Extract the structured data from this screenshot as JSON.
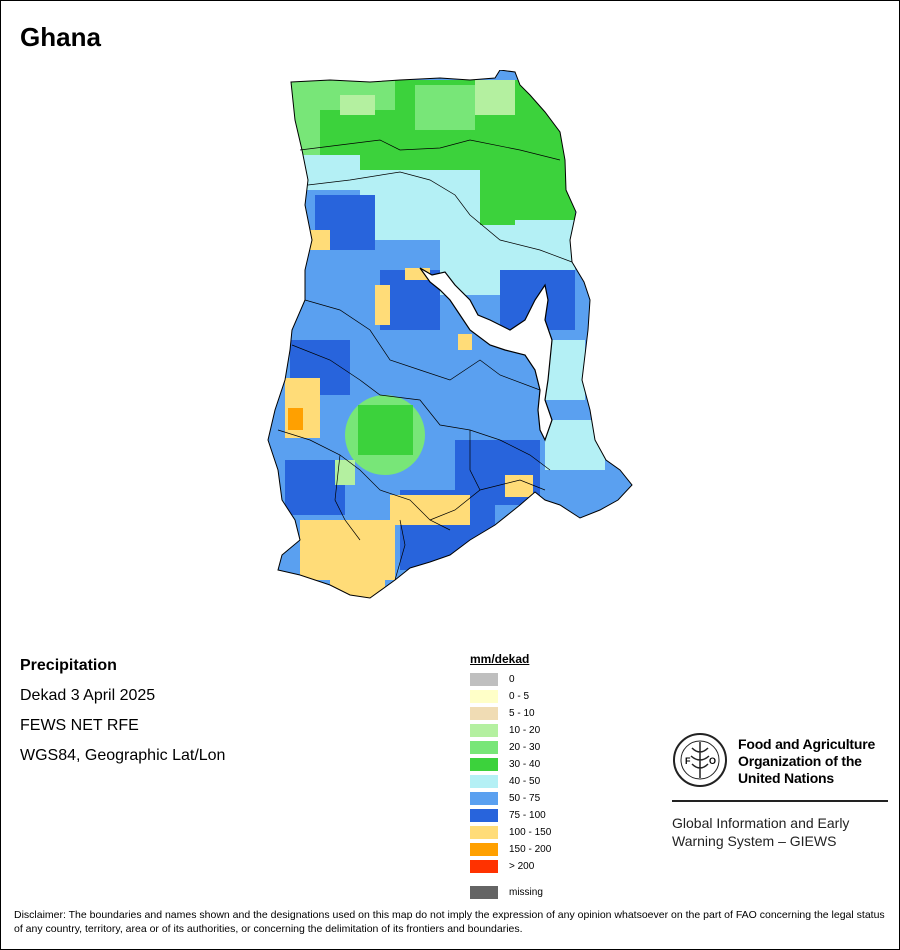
{
  "map": {
    "title": "Ghana",
    "info": {
      "variable": "Precipitation",
      "period": "Dekad 3 April 2025",
      "source": "FEWS NET RFE",
      "projection": "WGS84, Geographic Lat/Lon"
    }
  },
  "legend": {
    "title": "mm/dekad",
    "classes": [
      {
        "label": "0",
        "color": "#bfbfbf"
      },
      {
        "label": "0 - 5",
        "color": "#ffffc8"
      },
      {
        "label": "5 - 10",
        "color": "#f0dcb4"
      },
      {
        "label": "10 - 20",
        "color": "#b4f0a0"
      },
      {
        "label": "20 - 30",
        "color": "#78e678"
      },
      {
        "label": "30 - 40",
        "color": "#3cd23c"
      },
      {
        "label": "40 - 50",
        "color": "#b4f0f5"
      },
      {
        "label": "50 - 75",
        "color": "#5aa0f0"
      },
      {
        "label": "75 - 100",
        "color": "#2864dc"
      },
      {
        "label": "100 - 150",
        "color": "#ffdc78"
      },
      {
        "label": "150 - 200",
        "color": "#ffa000"
      },
      {
        "label": "> 200",
        "color": "#ff3200"
      }
    ],
    "missing": {
      "label": "missing",
      "color": "#646464"
    }
  },
  "branding": {
    "org_line1": "Food and Agriculture",
    "org_line2": "Organization of the",
    "org_line3": "United Nations",
    "logo_letters": "FAO",
    "logo_motto": "FIAT PANIS",
    "system_line1": "Global Information and Early",
    "system_line2": "Warning System – GIEWS"
  },
  "disclaimer": "Disclaimer: The boundaries and names shown and the designations used on this map do not imply the expression of any opinion whatsoever on the part of FAO concerning the legal status of any country, territory, area or of its authorities, or concerning the delimitation of its frontiers and boundaries."
}
